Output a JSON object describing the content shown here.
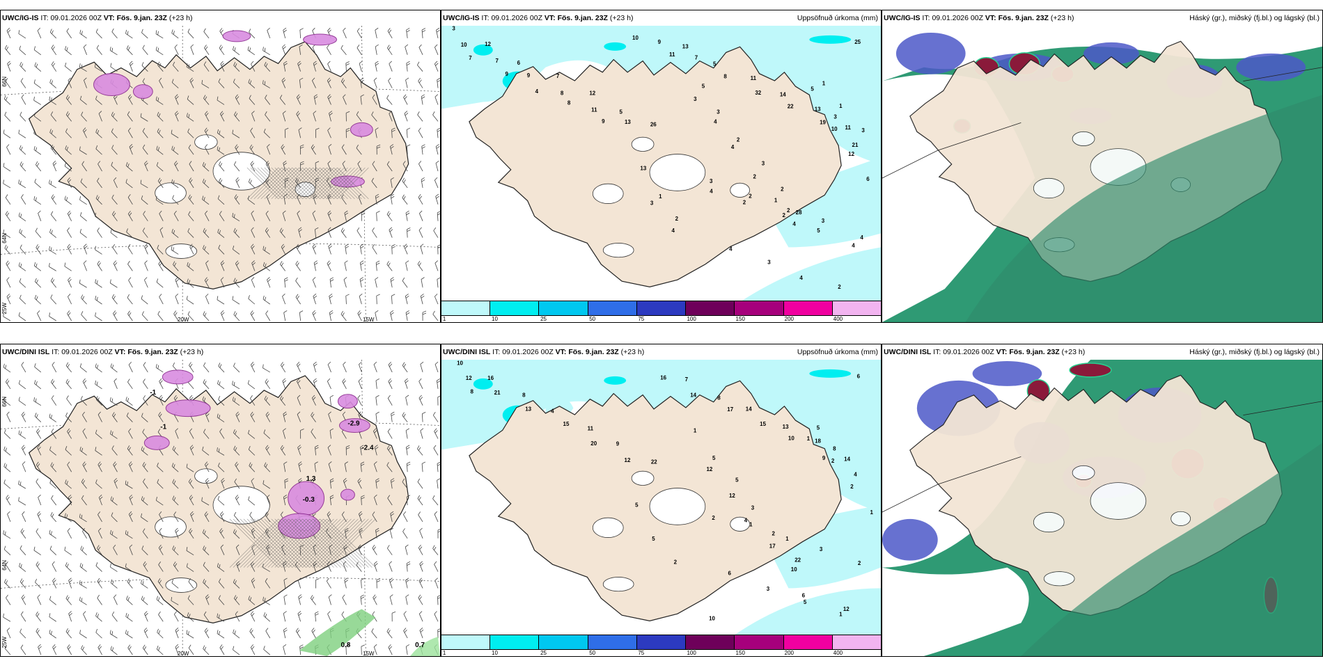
{
  "panels": [
    {
      "id": "p1",
      "model": "UWC/IG-IS",
      "it_label": "IT:",
      "it_value": "09.01.2026 00Z",
      "vt_label": "VT:",
      "vt_value": "Fös. 9.jan. 23Z",
      "lead": "(+23 h)",
      "title": ""
    },
    {
      "id": "p2",
      "model": "UWC/IG-IS",
      "it_label": "IT:",
      "it_value": "09.01.2026 00Z",
      "vt_label": "VT:",
      "vt_value": "Fös. 9.jan. 23Z",
      "lead": "(+23 h)",
      "title": "Uppsöfnuð úrkoma (mm)"
    },
    {
      "id": "p3",
      "model": "UWC/IG-IS",
      "it_label": "IT:",
      "it_value": "09.01.2026 00Z",
      "vt_label": "VT:",
      "vt_value": "Fös. 9.jan. 23Z",
      "lead": "(+23 h)",
      "title": "Háský (gr.), miðský (fj.bl.) og lágský (bl.)"
    },
    {
      "id": "p4",
      "model": "UWC/DINI ISL",
      "it_label": "IT:",
      "it_value": "09.01.2026 00Z",
      "vt_label": "VT:",
      "vt_value": "Fös. 9.jan. 23Z",
      "lead": "(+23 h)",
      "title": ""
    },
    {
      "id": "p5",
      "model": "UWC/DINI ISL",
      "it_label": "IT:",
      "it_value": "09.01.2026 00Z",
      "vt_label": "VT:",
      "vt_value": "Fös. 9.jan. 23Z",
      "lead": "(+23 h)",
      "title": "Uppsöfnuð úrkoma (mm)"
    },
    {
      "id": "p6",
      "model": "UWC/DINI ISL",
      "it_label": "IT:",
      "it_value": "09.01.2026 00Z",
      "vt_label": "VT:",
      "vt_value": "Fös. 9.jan. 23Z",
      "lead": "(+23 h)",
      "title": "Háský (gr.), miðský (fj.bl.) og lágský (bl.)"
    }
  ],
  "colorbar": {
    "ticks": [
      "1",
      "10",
      "25",
      "50",
      "75",
      "100",
      "150",
      "200",
      "400"
    ],
    "colors": [
      "#bff8fa",
      "#00eef0",
      "#00c8f0",
      "#2f6ee8",
      "#2c3ac0",
      "#6e005a",
      "#a6007c",
      "#f000a0",
      "#f2b4f0"
    ]
  },
  "grid_labels": {
    "lon_20": "20W",
    "lon_15": "15W",
    "lon_25": "25W",
    "lat_66": "66N",
    "lat_64": "64N"
  },
  "precip_labels_top": [
    "3",
    "12",
    "6",
    "7",
    "12",
    "5",
    "26",
    "13",
    "5",
    "11",
    "14",
    "13",
    "11",
    "10",
    "7",
    "9",
    "8",
    "11",
    "13",
    "9",
    "7",
    "8",
    "32",
    "22",
    "19",
    "25",
    "7",
    "9",
    "4",
    "8",
    "9",
    "10",
    "11",
    "10",
    "12",
    "6",
    "3",
    "4",
    "3",
    "4",
    "4",
    "2",
    "1",
    "4",
    "5",
    "3",
    "21",
    "13",
    "1",
    "2",
    "5",
    "3",
    "2",
    "3",
    "2",
    "28",
    "1",
    "1",
    "3",
    "3",
    "2",
    "2",
    "3",
    "4",
    "4",
    "3",
    "4",
    "2",
    "4",
    "2",
    "2",
    "5",
    "4"
  ],
  "precip_labels_bottom": [
    "10",
    "16",
    "8",
    "4",
    "11",
    "9",
    "22",
    "7",
    "8",
    "14",
    "13",
    "18",
    "14",
    "12",
    "21",
    "13",
    "15",
    "20",
    "12",
    "16",
    "14",
    "17",
    "15",
    "10",
    "9",
    "6",
    "8",
    "12",
    "12",
    "4",
    "17",
    "10",
    "1",
    "2",
    "2",
    "1",
    "5",
    "2",
    "1",
    "5",
    "5",
    "3",
    "2",
    "22",
    "5",
    "8",
    "4",
    "5",
    "6",
    "12",
    "10",
    "1",
    "1",
    "3",
    "2",
    "6",
    "3",
    "5",
    "1",
    "2"
  ],
  "anomaly_labels_bottom": [
    "-1",
    "-2.4",
    "-0.3",
    "1.3",
    "0.8",
    "0.7",
    "-1",
    "-2.9"
  ]
}
